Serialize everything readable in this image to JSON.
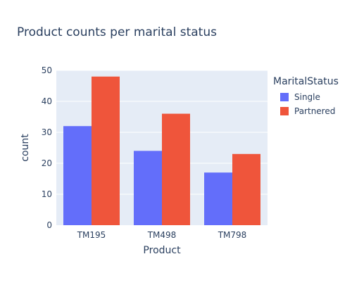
{
  "chart_data": {
    "type": "bar",
    "title": "Product counts per marital status",
    "xlabel": "Product",
    "ylabel": "count",
    "categories": [
      "TM195",
      "TM498",
      "TM798"
    ],
    "series": [
      {
        "name": "Single",
        "values": [
          32,
          24,
          17
        ],
        "color": "#636efa"
      },
      {
        "name": "Partnered",
        "values": [
          48,
          36,
          23
        ],
        "color": "#ef553b"
      }
    ],
    "ylim": [
      0,
      50
    ],
    "yticks": [
      0,
      10,
      20,
      30,
      40,
      50
    ],
    "grid": true,
    "legend": {
      "title": "MaritalStatus",
      "placement": "top-right"
    },
    "plot_bg": "#e5ecf6"
  }
}
